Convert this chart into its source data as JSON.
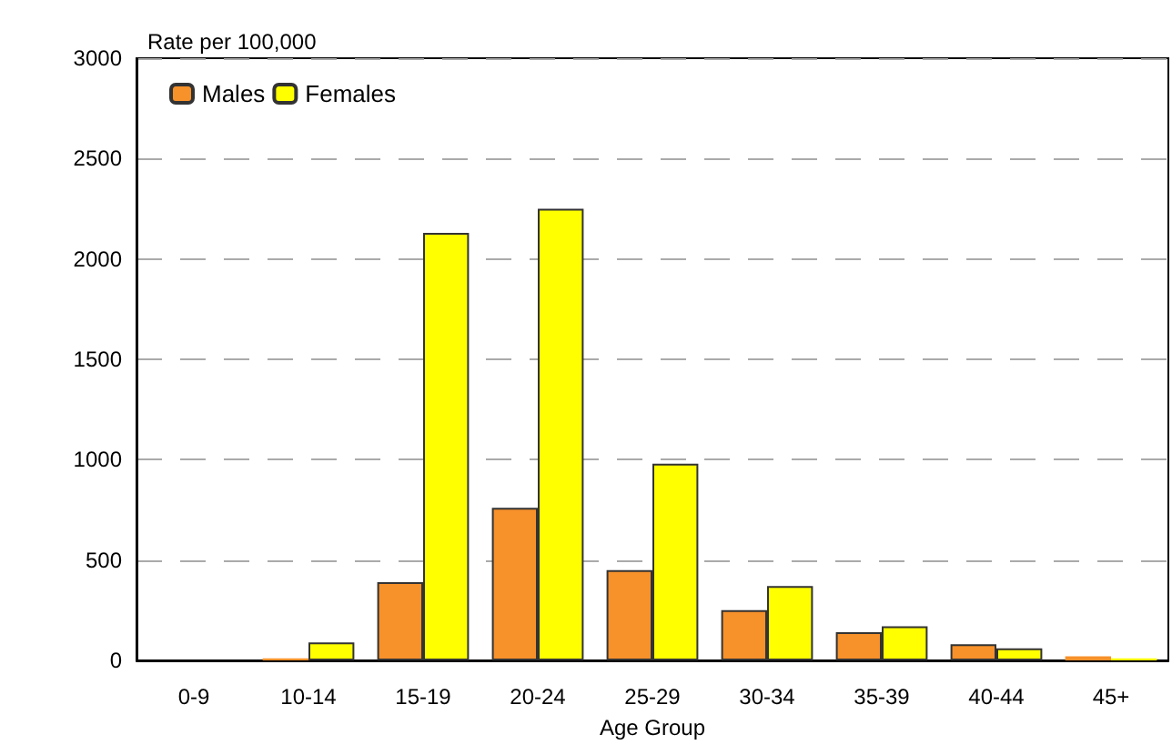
{
  "chart_data": {
    "type": "bar",
    "ylabel": "Rate per 100,000",
    "xlabel": "Age Group",
    "categories": [
      "0-9",
      "10-14",
      "15-19",
      "20-24",
      "25-29",
      "30-34",
      "35-39",
      "40-44",
      "45+"
    ],
    "series": [
      {
        "name": "Males",
        "color": "#f7912a",
        "values": [
          0,
          10,
          390,
          760,
          450,
          250,
          140,
          80,
          20
        ]
      },
      {
        "name": "Females",
        "color": "#ffff00",
        "values": [
          0,
          90,
          2130,
          2250,
          980,
          370,
          170,
          60,
          10
        ]
      }
    ],
    "ylim": [
      0,
      3000
    ],
    "yticks": [
      0,
      500,
      1000,
      1500,
      2000,
      2500,
      3000
    ],
    "grid": "y",
    "legend": "top left"
  }
}
